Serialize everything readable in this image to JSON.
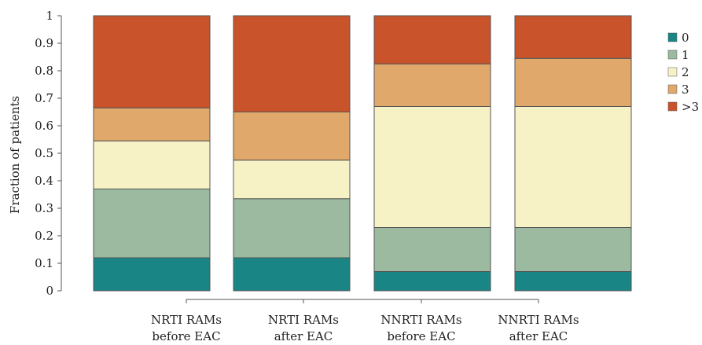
{
  "chart_data": {
    "type": "bar",
    "stacked": true,
    "ylabel": "Fraction of patients",
    "xlabel": "",
    "ylim": [
      0,
      1
    ],
    "yticks": [
      "0",
      "0.1",
      "0.2",
      "0.3",
      "0.4",
      "0.5",
      "0.6",
      "0.7",
      "0.8",
      "0.9",
      "1"
    ],
    "categories": [
      [
        "NRTI RAMs",
        "before EAC"
      ],
      [
        "NRTI RAMs",
        "after EAC"
      ],
      [
        "NNRTI RAMs",
        "before EAC"
      ],
      [
        "NNRTI RAMs",
        "after EAC"
      ]
    ],
    "series": [
      {
        "name": "0",
        "color": "#1a8585",
        "values": [
          0.12,
          0.12,
          0.07,
          0.07
        ]
      },
      {
        "name": "1",
        "color": "#9bba9f",
        "values": [
          0.25,
          0.215,
          0.16,
          0.16
        ]
      },
      {
        "name": "2",
        "color": "#f7f2c6",
        "values": [
          0.175,
          0.14,
          0.44,
          0.44
        ]
      },
      {
        "name": "3",
        "color": "#e0a96b",
        "values": [
          0.12,
          0.175,
          0.155,
          0.175
        ]
      },
      {
        "name": ">3",
        "color": "#c9532b",
        "values": [
          0.335,
          0.35,
          0.175,
          0.155
        ]
      }
    ],
    "legend": "right",
    "grid": false
  }
}
